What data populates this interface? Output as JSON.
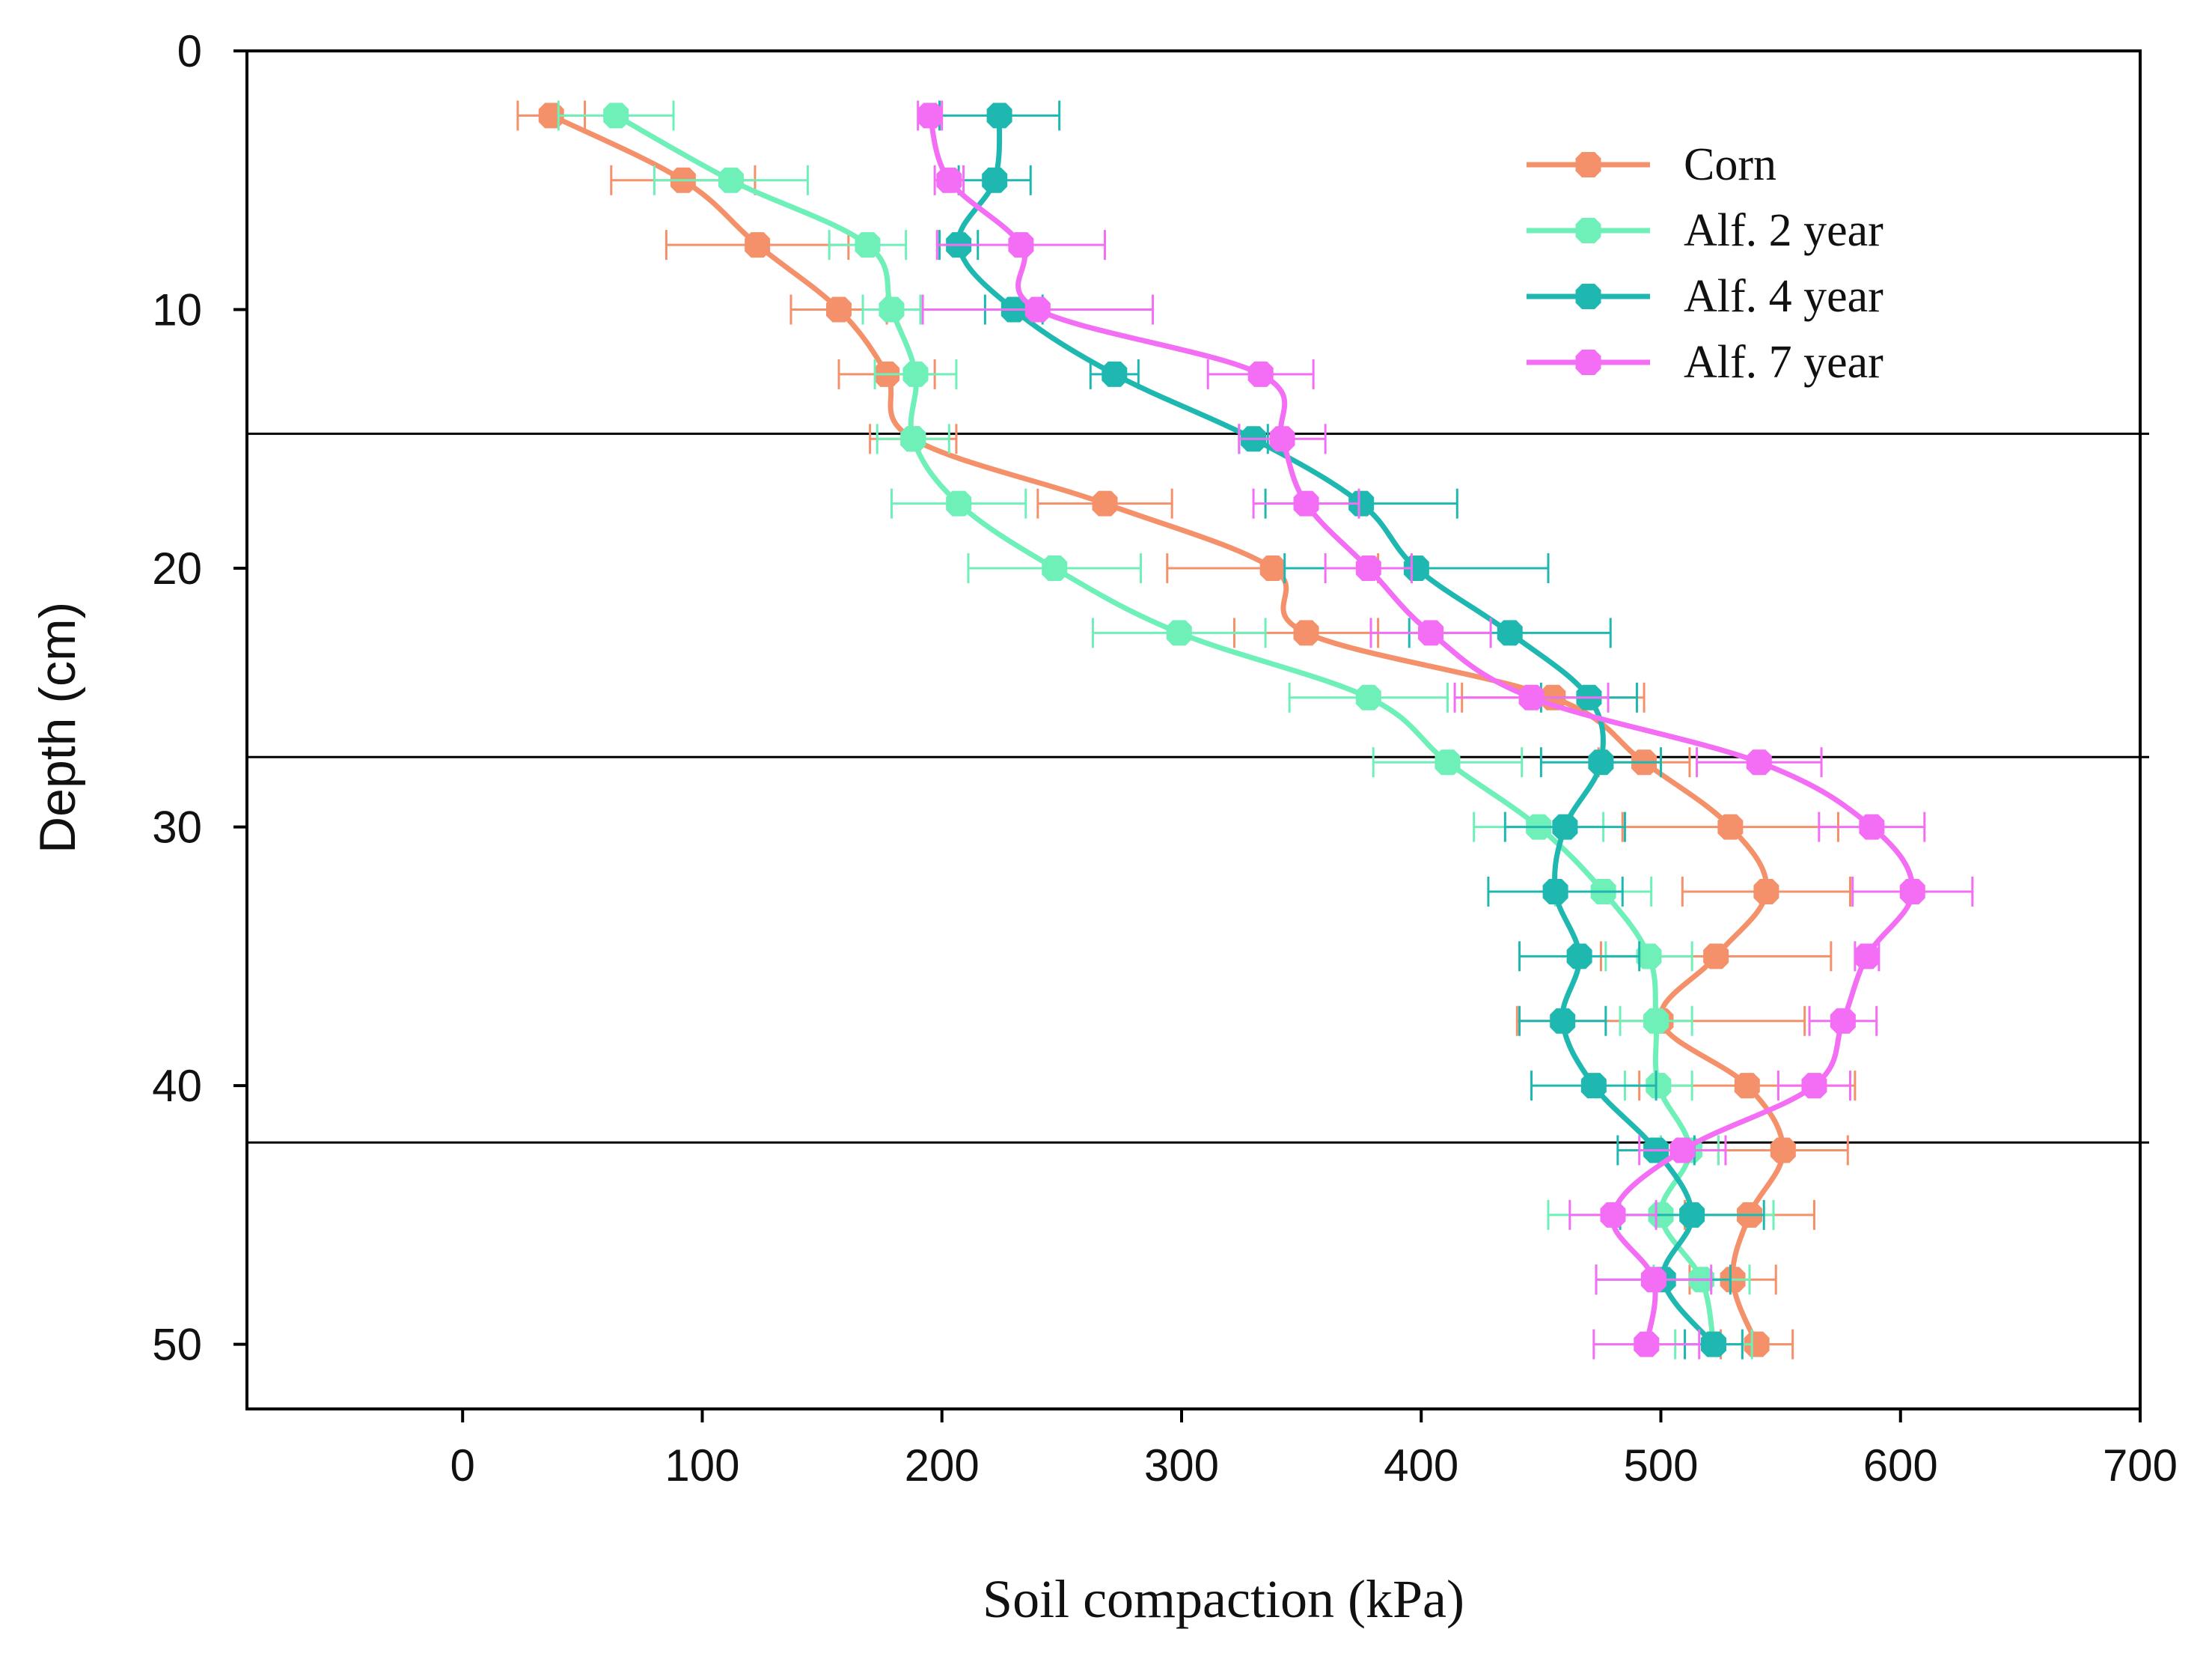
{
  "chart_data": {
    "type": "line",
    "title": "",
    "xlabel": "Soil compaction (kPa)",
    "ylabel": "Depth (cm)",
    "xlim": [
      -90,
      700
    ],
    "ylim": [
      0,
      52.5
    ],
    "y_inverted": true,
    "xticks": [
      0,
      100,
      200,
      300,
      400,
      500,
      600,
      700
    ],
    "yticks": [
      0,
      10,
      20,
      30,
      40,
      50
    ],
    "reference_lines_depth": [
      14.8,
      27.3,
      42.2
    ],
    "legend_position": "top-right",
    "grid": false,
    "depths": [
      2.5,
      5,
      7.5,
      10,
      12.5,
      15,
      17.5,
      20,
      22.5,
      25,
      27.5,
      30,
      32.5,
      35,
      37.5,
      40,
      42.5,
      45,
      47.5,
      50
    ],
    "series": [
      {
        "name": "Corn",
        "color": "#f4916a",
        "values": [
          37,
          92,
          123,
          157,
          177,
          188,
          268,
          338,
          352,
          455,
          493,
          529,
          544,
          523,
          500,
          536,
          551,
          537,
          530,
          540
        ],
        "errors": [
          14,
          30,
          38,
          20,
          20,
          18,
          28,
          44,
          30,
          38,
          19,
          45,
          35,
          48,
          60,
          45,
          27,
          27,
          18,
          15
        ]
      },
      {
        "name": "Alf. 2 year",
        "color": "#6ef0b8",
        "values": [
          64,
          112,
          169,
          179,
          189,
          188,
          207,
          247,
          299,
          378,
          411,
          449,
          476,
          495,
          498,
          499,
          512,
          500,
          517,
          522
        ],
        "errors": [
          24,
          32,
          16,
          12,
          17,
          15,
          28,
          36,
          36,
          33,
          31,
          27,
          20,
          18,
          15,
          14,
          12,
          47,
          20,
          16
        ]
      },
      {
        "name": "Alf. 4 year",
        "color": "#1fb8b0",
        "values": [
          224,
          222,
          207,
          230,
          272,
          330,
          375,
          398,
          437,
          470,
          475,
          460,
          456,
          466,
          459,
          472,
          498,
          513,
          501,
          522
        ],
        "errors": [
          25,
          15,
          8,
          12,
          10,
          6,
          40,
          55,
          42,
          20,
          25,
          25,
          28,
          25,
          18,
          26,
          16,
          30,
          28,
          12
        ]
      },
      {
        "name": "Alf. 7 year",
        "color": "#f36ef4",
        "values": [
          195,
          203,
          233,
          240,
          333,
          342,
          352,
          378,
          404,
          446,
          541,
          588,
          605,
          586,
          576,
          564,
          509,
          480,
          497,
          494
        ],
        "errors": [
          5,
          6,
          35,
          48,
          22,
          18,
          22,
          18,
          25,
          32,
          26,
          22,
          25,
          5,
          14,
          15,
          18,
          18,
          24,
          22
        ]
      }
    ]
  }
}
